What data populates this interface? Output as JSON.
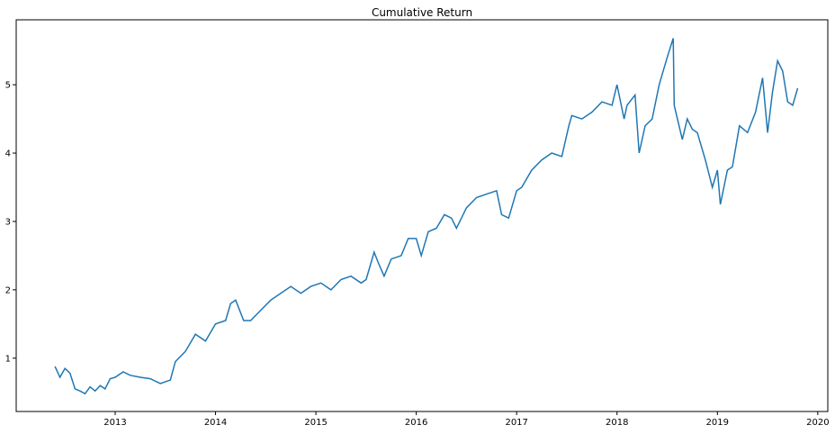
{
  "chart_data": {
    "type": "line",
    "title": "Cumulative Return",
    "x": [
      2012.4,
      2012.45,
      2012.5,
      2012.55,
      2012.6,
      2012.65,
      2012.7,
      2012.75,
      2012.8,
      2012.85,
      2012.9,
      2012.95,
      2013.0,
      2013.08,
      2013.15,
      2013.25,
      2013.35,
      2013.45,
      2013.55,
      2013.6,
      2013.7,
      2013.8,
      2013.9,
      2014.0,
      2014.1,
      2014.15,
      2014.2,
      2014.28,
      2014.35,
      2014.45,
      2014.55,
      2014.65,
      2014.75,
      2014.85,
      2014.95,
      2015.05,
      2015.15,
      2015.25,
      2015.35,
      2015.45,
      2015.5,
      2015.58,
      2015.62,
      2015.68,
      2015.75,
      2015.85,
      2015.92,
      2016.0,
      2016.05,
      2016.12,
      2016.2,
      2016.28,
      2016.35,
      2016.4,
      2016.5,
      2016.6,
      2016.7,
      2016.8,
      2016.85,
      2016.92,
      2017.0,
      2017.05,
      2017.15,
      2017.25,
      2017.35,
      2017.45,
      2017.52,
      2017.55,
      2017.65,
      2017.75,
      2017.85,
      2017.95,
      2018.0,
      2018.07,
      2018.1,
      2018.18,
      2018.22,
      2018.28,
      2018.35,
      2018.42,
      2018.5,
      2018.56,
      2018.57,
      2018.65,
      2018.7,
      2018.75,
      2018.8,
      2018.88,
      2018.95,
      2019.0,
      2019.03,
      2019.1,
      2019.15,
      2019.22,
      2019.3,
      2019.38,
      2019.45,
      2019.5,
      2019.55,
      2019.6,
      2019.65,
      2019.7,
      2019.75,
      2019.8
    ],
    "series": [
      {
        "color": "#1f77b4",
        "values": [
          0.88,
          0.72,
          0.85,
          0.78,
          0.55,
          0.52,
          0.48,
          0.58,
          0.52,
          0.6,
          0.55,
          0.7,
          0.72,
          0.8,
          0.75,
          0.72,
          0.7,
          0.63,
          0.68,
          0.95,
          1.1,
          1.35,
          1.25,
          1.5,
          1.55,
          1.8,
          1.85,
          1.55,
          1.55,
          1.7,
          1.85,
          1.95,
          2.05,
          1.95,
          2.05,
          2.1,
          2.0,
          2.15,
          2.2,
          2.1,
          2.15,
          2.55,
          2.4,
          2.2,
          2.45,
          2.5,
          2.75,
          2.75,
          2.5,
          2.85,
          2.9,
          3.1,
          3.05,
          2.9,
          3.2,
          3.35,
          3.4,
          3.45,
          3.1,
          3.05,
          3.45,
          3.5,
          3.75,
          3.9,
          4.0,
          3.95,
          4.4,
          4.55,
          4.5,
          4.6,
          4.75,
          4.7,
          5.0,
          4.5,
          4.7,
          4.85,
          4.0,
          4.4,
          4.5,
          5.0,
          5.4,
          5.68,
          4.7,
          4.2,
          4.5,
          4.35,
          4.3,
          3.9,
          3.5,
          3.75,
          3.25,
          3.75,
          3.8,
          4.4,
          4.3,
          4.6,
          5.1,
          4.3,
          4.9,
          5.35,
          5.2,
          4.75,
          4.7,
          4.95
        ]
      }
    ],
    "xlim": [
      2012.014,
      2020.1
    ],
    "xticks": [
      2013,
      2014,
      2015,
      2016,
      2017,
      2018,
      2019,
      2020
    ],
    "ylim": [
      0.22,
      5.95
    ],
    "yticks": [
      1,
      2,
      3,
      4,
      5
    ]
  }
}
